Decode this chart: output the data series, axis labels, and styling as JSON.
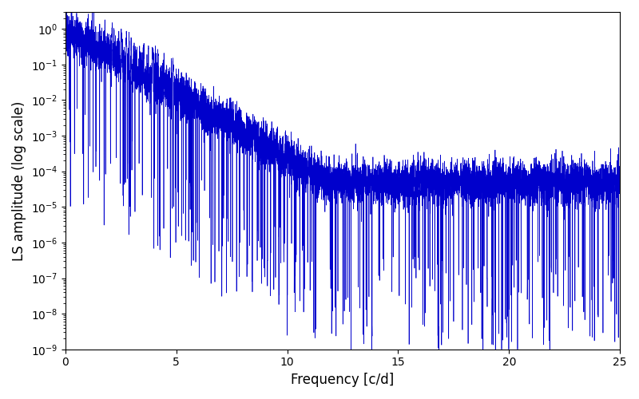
{
  "xlabel": "Frequency [c/d]",
  "ylabel": "LS amplitude (log scale)",
  "xlim": [
    0,
    25
  ],
  "ylim": [
    1e-09,
    3.0
  ],
  "line_color": "#0000cc",
  "line_width": 0.5,
  "background_color": "#ffffff",
  "xticks": [
    0,
    5,
    10,
    15,
    20,
    25
  ],
  "figsize": [
    8.0,
    5.0
  ],
  "dpi": 100,
  "n_points": 8000,
  "seed": 12345,
  "peak_amp": 1.0,
  "peak_freq": 0.4,
  "decay_scale": 1.2,
  "noise_floor": 5e-05,
  "log_noise_sigma": 0.7,
  "n_dips": 300,
  "dip_depth_min": 2.0,
  "dip_depth_max": 5.0
}
